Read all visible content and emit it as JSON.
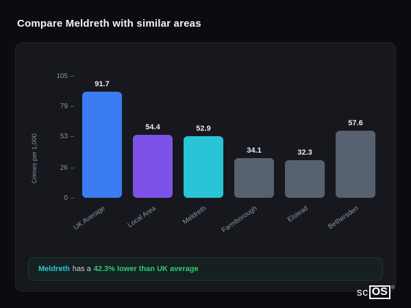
{
  "title": "Compare Meldreth with similar areas",
  "chart_data": {
    "type": "bar",
    "title": "",
    "categories": [
      "UK Average",
      "Local Area",
      "Meldreth",
      "Farmborough",
      "Elstead",
      "Bethersden"
    ],
    "values": [
      91.7,
      54.4,
      52.9,
      34.1,
      32.3,
      57.6
    ],
    "bar_colors": [
      "#3b7cf0",
      "#7d52e8",
      "#29c5d6",
      "#57616f",
      "#57616f",
      "#57616f"
    ],
    "xlabel": "",
    "ylabel": "Crimes per 1,000",
    "ylim": [
      0,
      105
    ],
    "yticks": [
      0,
      26,
      53,
      79,
      105
    ],
    "grid": false,
    "legend": false
  },
  "note": {
    "subject": "Meldreth",
    "middle": "has a",
    "highlight": "42.3% lower than UK average"
  },
  "colors": {
    "accent_blue": "#3b7cf0",
    "accent_purple": "#7d52e8",
    "accent_teal": "#29c5d6",
    "neutral_bar": "#57616f",
    "accent_green": "#2ecc71"
  },
  "logo": {
    "prefix": "sc",
    "boxed": "OS",
    "mark": "®"
  }
}
